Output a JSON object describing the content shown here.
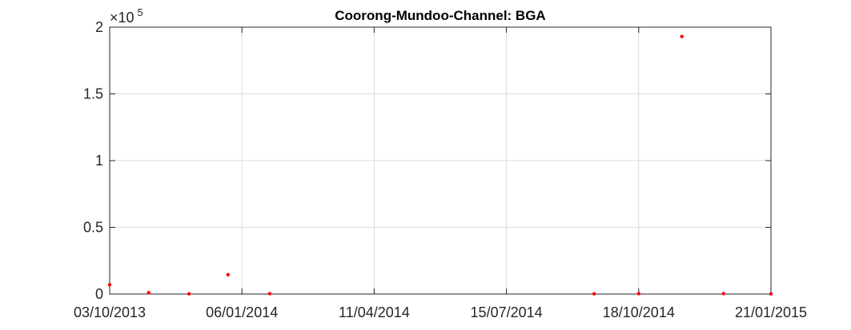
{
  "chart_data": {
    "type": "scatter",
    "title": "Coorong-Mundoo-Channel: BGA",
    "xlabel": "",
    "ylabel": "",
    "x_type": "date",
    "xlim": [
      "2013-10-03",
      "2015-01-21"
    ],
    "ylim": [
      0,
      200000
    ],
    "y_exponent_label": {
      "base": "×10",
      "exponent": "5"
    },
    "grid": true,
    "marker_color": "#ff0000",
    "x_ticks": [
      {
        "date": "2013-10-03",
        "label": "03/10/2013"
      },
      {
        "date": "2014-01-06",
        "label": "06/01/2014"
      },
      {
        "date": "2014-04-11",
        "label": "11/04/2014"
      },
      {
        "date": "2014-07-15",
        "label": "15/07/2014"
      },
      {
        "date": "2014-10-18",
        "label": "18/10/2014"
      },
      {
        "date": "2015-01-21",
        "label": "21/01/2015"
      }
    ],
    "y_ticks": [
      {
        "value": 0,
        "label": "0"
      },
      {
        "value": 50000,
        "label": "0.5"
      },
      {
        "value": 100000,
        "label": "1"
      },
      {
        "value": 150000,
        "label": "1.5"
      },
      {
        "value": 200000,
        "label": "2"
      }
    ],
    "series": [
      {
        "points": [
          {
            "x": "2013-10-03",
            "y": 7000
          },
          {
            "x": "2013-10-31",
            "y": 1000
          },
          {
            "x": "2013-11-29",
            "y": 200
          },
          {
            "x": "2013-12-27",
            "y": 14500
          },
          {
            "x": "2014-01-26",
            "y": 300
          },
          {
            "x": "2014-09-16",
            "y": 200
          },
          {
            "x": "2014-10-18",
            "y": 300
          },
          {
            "x": "2014-11-18",
            "y": 193000
          },
          {
            "x": "2014-12-18",
            "y": 300
          },
          {
            "x": "2015-01-21",
            "y": 200
          }
        ]
      }
    ]
  }
}
